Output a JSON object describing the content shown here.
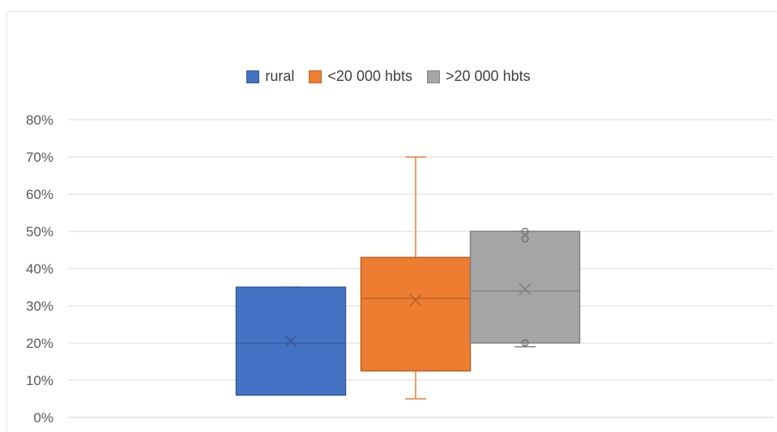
{
  "chart_data": {
    "type": "boxplot",
    "title": "",
    "xlabel": "",
    "ylabel": "",
    "ylim": [
      0,
      0.8
    ],
    "y_ticks": [
      "0%",
      "10%",
      "20%",
      "30%",
      "40%",
      "50%",
      "60%",
      "70%",
      "80%"
    ],
    "grid": true,
    "legend_position": "top",
    "series": [
      {
        "name": "rural",
        "color": "#4472c4",
        "min": 0.06,
        "q1": 0.06,
        "median": 0.2,
        "q3": 0.35,
        "max": 0.35,
        "mean": 0.205,
        "outliers": []
      },
      {
        "name": "<20 000 hbts",
        "color": "#ed7d31",
        "min": 0.05,
        "q1": 0.125,
        "median": 0.32,
        "q3": 0.43,
        "max": 0.7,
        "mean": 0.315,
        "outliers": []
      },
      {
        "name": ">20 000 hbts",
        "color": "#a5a5a5",
        "min": 0.19,
        "q1": 0.2,
        "median": 0.34,
        "q3": 0.5,
        "max": 0.5,
        "mean": 0.345,
        "outliers": [
          0.2,
          0.48,
          0.5
        ]
      }
    ]
  }
}
